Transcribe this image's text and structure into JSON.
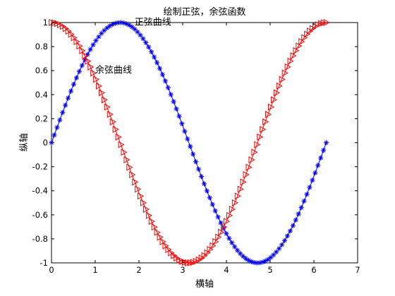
{
  "chart_data": {
    "type": "line",
    "title": "绘制正弦，余弦函数",
    "xlabel": "横轴",
    "ylabel": "纵轴",
    "xlim": [
      0,
      7
    ],
    "ylim": [
      -1,
      1
    ],
    "xticks": [
      0,
      1,
      2,
      3,
      4,
      5,
      6,
      7
    ],
    "yticks": [
      -1,
      -0.8,
      -0.6,
      -0.4,
      -0.2,
      0,
      0.2,
      0.4,
      0.6,
      0.8,
      1
    ],
    "ytick_labels": [
      "-1",
      "-0.8",
      "-0.6",
      "-0.4",
      "-0.2",
      "0",
      "0.2",
      "0.4",
      "0.6",
      "0.8",
      "1"
    ],
    "grid": false,
    "series": [
      {
        "function": "sin",
        "x_start": 0,
        "x_end": 6.2832,
        "num_points": 100,
        "color": "#0000ff",
        "marker": "*"
      },
      {
        "function": "cos",
        "x_start": 0,
        "x_end": 6.2832,
        "num_points": 100,
        "color": "#ff0000",
        "marker": ">"
      }
    ],
    "annotations": [
      {
        "text": "正弦曲线",
        "x": 1.9,
        "y": 0.98
      },
      {
        "text": "余弦曲线",
        "x": 1.0,
        "y": 0.58
      }
    ]
  }
}
